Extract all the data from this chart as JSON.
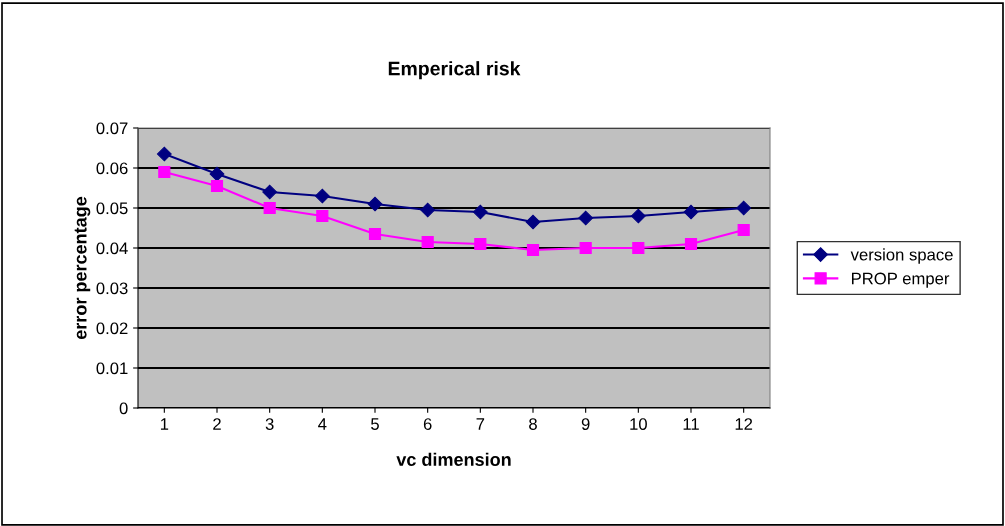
{
  "chart_data": {
    "type": "line",
    "title": "Emperical risk",
    "xlabel": "vc dimension",
    "ylabel": "error percentage",
    "categories": [
      "1",
      "2",
      "3",
      "4",
      "5",
      "6",
      "7",
      "8",
      "9",
      "10",
      "11",
      "12"
    ],
    "series": [
      {
        "name": "version space",
        "color": "#000080",
        "marker": "diamond",
        "values": [
          0.0635,
          0.0585,
          0.054,
          0.053,
          0.051,
          0.0495,
          0.049,
          0.0465,
          0.0475,
          0.048,
          0.049,
          0.05
        ]
      },
      {
        "name": "PROP emper",
        "color": "#ff00ff",
        "marker": "square",
        "values": [
          0.059,
          0.0555,
          0.05,
          0.048,
          0.0435,
          0.0415,
          0.041,
          0.0395,
          0.04,
          0.04,
          0.041,
          0.0445
        ]
      }
    ],
    "ylim": [
      0,
      0.07
    ],
    "yticks": [
      {
        "value": 0,
        "label": "0"
      },
      0.01,
      0.02,
      0.03,
      0.04,
      0.05,
      0.06,
      0.07
    ],
    "grid": "y",
    "legend": "right"
  }
}
